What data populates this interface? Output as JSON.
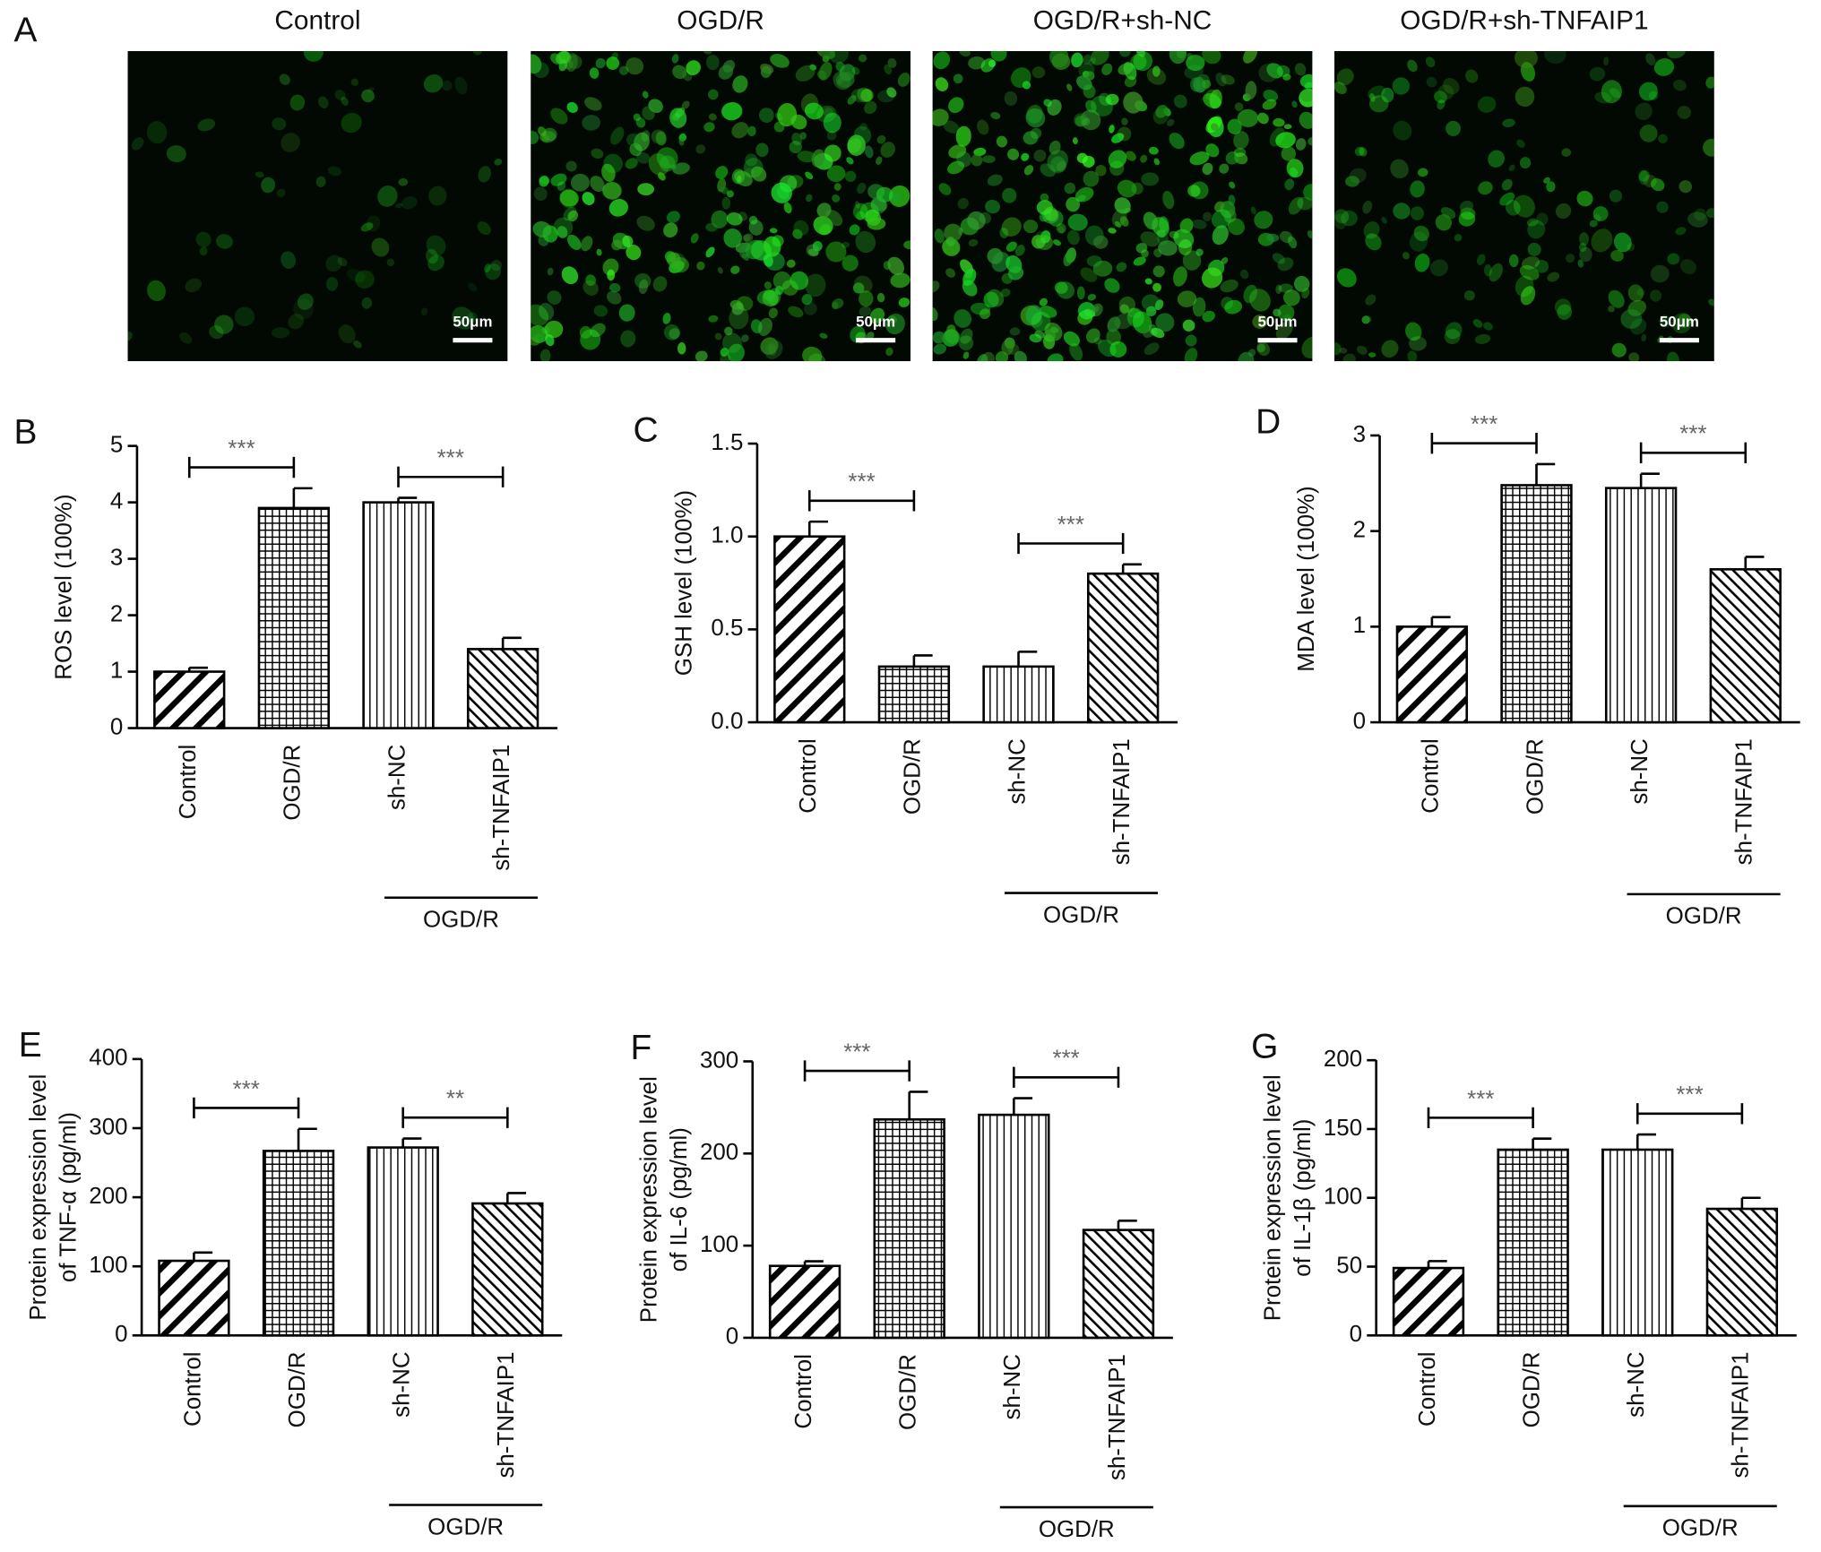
{
  "panel_a": {
    "label": "A",
    "images": [
      {
        "title": "Control",
        "scale_bar": "50μm"
      },
      {
        "title": "OGD/R",
        "scale_bar": "50μm"
      },
      {
        "title": "OGD/R+sh-NC",
        "scale_bar": "50μm"
      },
      {
        "title": "OGD/R+sh-TNFAIP1",
        "scale_bar": "50μm"
      }
    ]
  },
  "chart_data": [
    {
      "type": "bar",
      "label": "B",
      "y_label": [
        "ROS level (100%)"
      ],
      "categories": [
        "Control",
        "OGD/R",
        "sh-NC",
        "sh-TNFAIP1"
      ],
      "group_label": "OGD/R",
      "values": [
        1.0,
        3.9,
        4.0,
        1.4
      ],
      "errors": [
        0.07,
        0.35,
        0.08,
        0.2
      ],
      "significance": [
        "***",
        "***"
      ],
      "ylim": [
        0,
        5
      ],
      "yticks": [
        0,
        1,
        2,
        3,
        4,
        5
      ]
    },
    {
      "type": "bar",
      "label": "C",
      "y_label": [
        "GSH level (100%)"
      ],
      "categories": [
        "Control",
        "OGD/R",
        "sh-NC",
        "sh-TNFAIP1"
      ],
      "group_label": "OGD/R",
      "values": [
        1.0,
        0.3,
        0.3,
        0.8
      ],
      "errors": [
        0.08,
        0.06,
        0.08,
        0.05
      ],
      "significance": [
        "***",
        "***"
      ],
      "ylim": [
        0,
        1.5
      ],
      "yticks": [
        {
          "value": 0,
          "label": "0.0"
        },
        0.5,
        {
          "value": 1,
          "label": "1.0"
        },
        1.5
      ]
    },
    {
      "type": "bar",
      "label": "D",
      "y_label": [
        "MDA level (100%)"
      ],
      "categories": [
        "Control",
        "OGD/R",
        "sh-NC",
        "sh-TNFAIP1"
      ],
      "group_label": "OGD/R",
      "values": [
        1.0,
        2.48,
        2.45,
        1.6
      ],
      "errors": [
        0.1,
        0.22,
        0.15,
        0.13
      ],
      "significance": [
        "***",
        "***"
      ],
      "ylim": [
        0,
        3
      ],
      "yticks": [
        0,
        1,
        2,
        3
      ]
    },
    {
      "type": "bar",
      "label": "E",
      "y_label": [
        "Protein expression level",
        "of TNF-α (pg/ml)"
      ],
      "categories": [
        "Control",
        "OGD/R",
        "sh-NC",
        "sh-TNFAIP1"
      ],
      "group_label": "OGD/R",
      "values": [
        108,
        267,
        272,
        191
      ],
      "errors": [
        12,
        32,
        13,
        15
      ],
      "significance": [
        "***",
        "**"
      ],
      "ylim": [
        0,
        400
      ],
      "yticks": [
        0,
        100,
        200,
        300,
        400
      ]
    },
    {
      "type": "bar",
      "label": "F",
      "y_label": [
        "Protein expression level",
        "of IL-6 (pg/ml)"
      ],
      "categories": [
        "Control",
        "OGD/R",
        "sh-NC",
        "sh-TNFAIP1"
      ],
      "group_label": "OGD/R",
      "values": [
        78,
        237,
        242,
        117
      ],
      "errors": [
        5,
        30,
        18,
        10
      ],
      "significance": [
        "***",
        "***"
      ],
      "ylim": [
        0,
        300
      ],
      "yticks": [
        0,
        100,
        200,
        300
      ]
    },
    {
      "type": "bar",
      "label": "G",
      "y_label": [
        "Protein expression level",
        "of IL-1β (pg/ml)"
      ],
      "categories": [
        "Control",
        "OGD/R",
        "sh-NC",
        "sh-TNFAIP1"
      ],
      "group_label": "OGD/R",
      "values": [
        49,
        135,
        135,
        92
      ],
      "errors": [
        5,
        8,
        11,
        8
      ],
      "significance": [
        "***",
        "***"
      ],
      "ylim": [
        0,
        200
      ],
      "yticks": [
        0,
        50,
        100,
        150,
        200
      ]
    }
  ]
}
